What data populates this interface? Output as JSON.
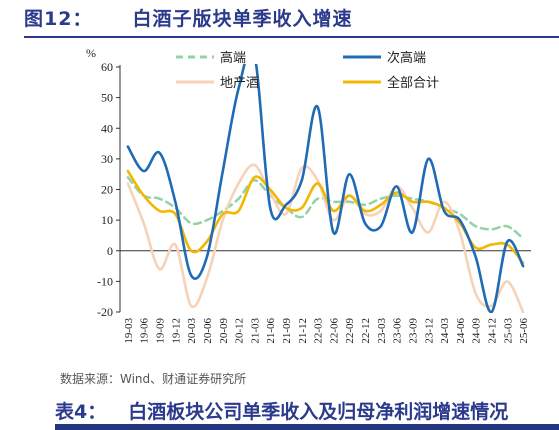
{
  "figure": {
    "number": "图12：",
    "title": "白酒子版块单季收入增速"
  },
  "source_note": "数据来源：Wind、财通证券研究所",
  "table_caption": {
    "number": "表4：",
    "title": "白酒板块公司单季收入及归母净利润增速情况"
  },
  "colors": {
    "title": "#2b3a8c",
    "gao_duan": "#8fd3a6",
    "ci_gao_duan": "#1f6bb5",
    "di_chan_jiu": "#f6d2b8",
    "quan_bu": "#f2b705"
  },
  "chart_data": {
    "type": "line",
    "unit_label": "%",
    "ylim": [
      -20,
      60
    ],
    "yticks": [
      60,
      50,
      40,
      30,
      20,
      10,
      0,
      -10,
      -20
    ],
    "grid": false,
    "legend_position": "top",
    "categories": [
      "19-03",
      "19-06",
      "19-09",
      "19-12",
      "20-03",
      "20-06",
      "20-09",
      "20-12",
      "21-03",
      "21-06",
      "21-09",
      "21-12",
      "22-03",
      "22-06",
      "22-09",
      "22-12",
      "23-03",
      "23-06",
      "23-09",
      "23-12",
      "24-03",
      "24-06",
      "24-09",
      "24-12",
      "25-03",
      "25-06"
    ],
    "series": [
      {
        "name": "高端",
        "style": "dashed",
        "values": [
          24,
          18,
          17,
          14,
          9,
          10,
          13,
          17,
          23,
          18,
          14,
          11,
          17,
          16,
          16,
          15,
          17,
          18,
          17,
          16,
          14,
          12,
          8,
          7,
          8,
          4
        ]
      },
      {
        "name": "次高端",
        "style": "solid",
        "values": [
          34,
          26,
          32,
          16,
          -8,
          -2,
          26,
          53,
          64,
          14,
          15,
          23,
          47,
          6,
          25,
          9,
          8,
          21,
          6,
          30,
          13,
          10,
          -2,
          -20,
          3,
          -5
        ]
      },
      {
        "name": "地产酒",
        "style": "solid",
        "values": [
          22,
          9,
          -6,
          2,
          -18,
          -9,
          10,
          22,
          28,
          19,
          12,
          27,
          23,
          10,
          18,
          12,
          13,
          21,
          14,
          6,
          16,
          6,
          -14,
          -18,
          -10,
          -20
        ]
      },
      {
        "name": "全部合计",
        "style": "solid",
        "values": [
          26,
          18,
          13,
          12,
          0,
          3,
          12,
          13,
          24,
          20,
          14,
          14,
          22,
          13,
          18,
          13,
          15,
          19,
          16,
          16,
          14,
          9,
          1,
          2,
          2,
          -4
        ]
      }
    ]
  }
}
